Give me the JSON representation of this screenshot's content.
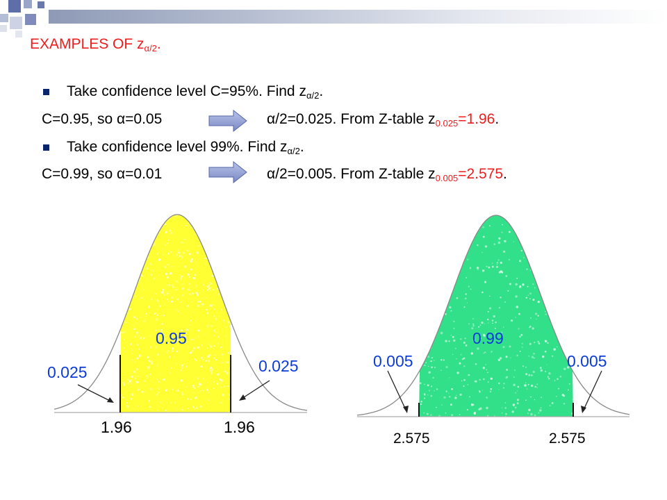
{
  "title": {
    "prefix": "EXAMPLES OF z",
    "sub": "α/2",
    "suffix": "."
  },
  "bullet1": {
    "text": "Take confidence level C=95%. Find z",
    "sub": "α/2",
    "suffix": "."
  },
  "line1": {
    "left": "C=0.95, so α=0.05",
    "right": "α/2=0.025. From Z-table z",
    "sub": "0.025",
    "value": "=1.96",
    "end": "."
  },
  "bullet2": {
    "text": "Take confidence level 99%. Find z",
    "sub": "α/2",
    "suffix": "."
  },
  "line2": {
    "left": "C=0.99, so α=0.01",
    "right": "α/2=0.005. From Z-table z",
    "sub": "0.005",
    "value": "=2.575",
    "end": "."
  },
  "fig1": {
    "center_area": "0.95",
    "left_tail": "0.025",
    "right_tail": "0.025",
    "left_crit": "1.96",
    "right_crit": "1.96",
    "fill_color": "#ffff33"
  },
  "fig2": {
    "center_area": "0.99",
    "left_tail": "0.005",
    "right_tail": "0.005",
    "left_crit": "2.575",
    "right_crit": "2.575",
    "fill_color": "#33e08a"
  },
  "colors": {
    "accent_red": "#ee1c1c",
    "label_blue": "#0b3bd9",
    "arrow_fill": "#8f9ccf"
  }
}
